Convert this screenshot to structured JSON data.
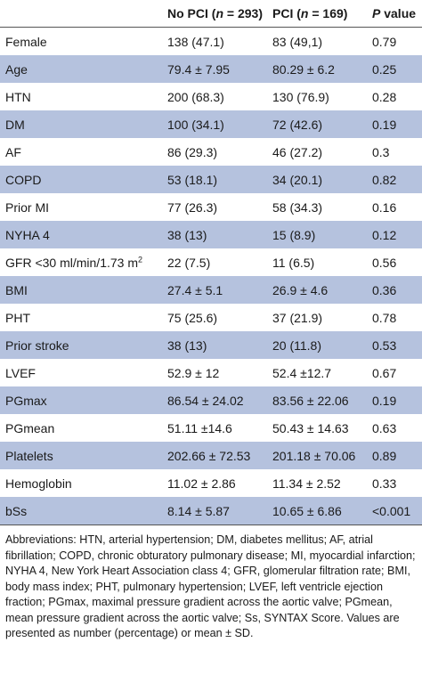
{
  "table": {
    "headers": {
      "col0": "",
      "col1_pre": "No PCI (",
      "col1_n": "n",
      "col1_post": " = 293)",
      "col2_pre": "PCI (",
      "col2_n": "n",
      "col2_post": " = 169)",
      "col3_p": "P",
      "col3_post": " value"
    },
    "rows": [
      {
        "label": "Female",
        "no_pci": "138 (47.1)",
        "pci": "83 (49,1)",
        "p": "0.79"
      },
      {
        "label": "Age",
        "no_pci": "79.4 ± 7.95",
        "pci": "80.29 ± 6.2",
        "p": "0.25"
      },
      {
        "label": "HTN",
        "no_pci": "200 (68.3)",
        "pci": "130 (76.9)",
        "p": "0.28"
      },
      {
        "label": "DM",
        "no_pci": "100 (34.1)",
        "pci": "72 (42.6)",
        "p": "0.19"
      },
      {
        "label": "AF",
        "no_pci": "86 (29.3)",
        "pci": "46 (27.2)",
        "p": "0.3"
      },
      {
        "label": "COPD",
        "no_pci": "53 (18.1)",
        "pci": "34 (20.1)",
        "p": "0.82"
      },
      {
        "label": "Prior MI",
        "no_pci": "77 (26.3)",
        "pci": "58 (34.3)",
        "p": "0.16"
      },
      {
        "label": "NYHA 4",
        "no_pci": "38 (13)",
        "pci": "15 (8.9)",
        "p": "0.12"
      },
      {
        "label": "GFR <30 ml/min/1.73 m",
        "label_sup": "2",
        "no_pci": "22 (7.5)",
        "pci": "11 (6.5)",
        "p": "0.56"
      },
      {
        "label": "BMI",
        "no_pci": "27.4 ± 5.1",
        "pci": "26.9 ± 4.6",
        "p": "0.36"
      },
      {
        "label": "PHT",
        "no_pci": "75 (25.6)",
        "pci": "37 (21.9)",
        "p": "0.78"
      },
      {
        "label": "Prior stroke",
        "no_pci": "38 (13)",
        "pci": "20 (11.8)",
        "p": "0.53"
      },
      {
        "label": "LVEF",
        "no_pci": "52.9 ± 12",
        "pci": "52.4 ±12.7",
        "p": "0.67"
      },
      {
        "label": "PGmax",
        "no_pci": "86.54 ± 24.02",
        "pci": "83.56 ± 22.06",
        "p": "0.19"
      },
      {
        "label": "PGmean",
        "no_pci": "51.11 ±14.6",
        "pci": "50.43 ± 14.63",
        "p": "0.63"
      },
      {
        "label": "Platelets",
        "no_pci": "202.66 ± 72.53",
        "pci": "201.18 ± 70.06",
        "p": "0.89"
      },
      {
        "label": "Hemoglobin",
        "no_pci": "11.02 ± 2.86",
        "pci": "11.34 ± 2.52",
        "p": "0.33"
      },
      {
        "label": "bSs",
        "no_pci": "8.14 ± 5.87",
        "pci": "10.65 ± 6.86",
        "p": "<0.001"
      }
    ]
  },
  "footnote": "Abbreviations: HTN, arterial hypertension; DM, diabetes mellitus; AF, atrial fibrillation; COPD, chronic obturatory pulmonary disease; MI, myocardial infarction; NYHA 4, New York Heart Association class 4; GFR, glomerular filtration rate; BMI, body mass index; PHT, pulmonary hypertension; LVEF, left ventricle ejection fraction; PGmax, maximal pressure gradient across the aortic valve; PGmean, mean pressure gradient across the aortic valve; Ss, SYNTAX Score. Values are presented as number (percentage) or mean ± SD.",
  "colors": {
    "stripe": "#b5c2de",
    "rule": "#555555",
    "text": "#1a1a1a"
  }
}
